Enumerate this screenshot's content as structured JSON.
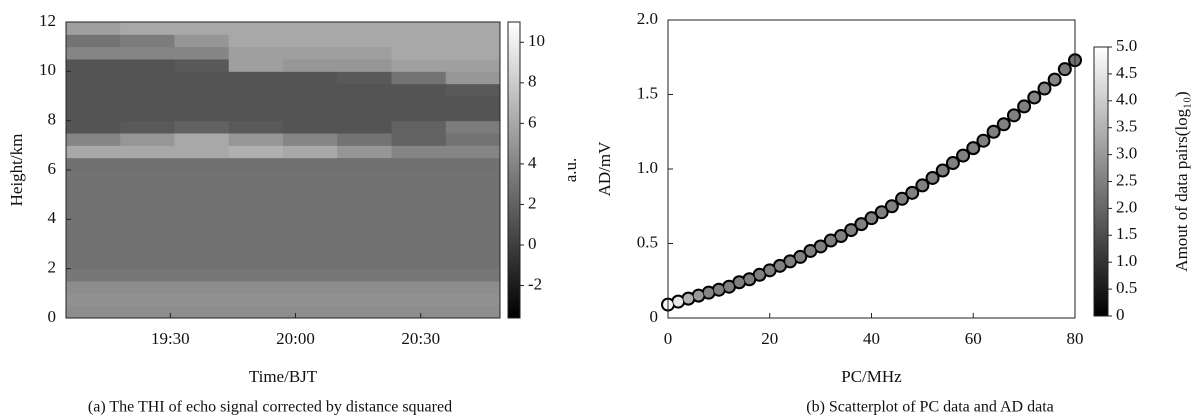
{
  "chart_data": [
    {
      "type": "heatmap",
      "colormap": "gray",
      "caption": "(a) The THI of echo signal corrected by distance squared",
      "xlabel": "Time/BJT",
      "ylabel": "Height/km",
      "colorbar_label": "a.u.",
      "xlim": [
        1145,
        1249
      ],
      "xticks": [
        {
          "value": 1170,
          "label": "19:30"
        },
        {
          "value": 1200,
          "label": "20:00"
        },
        {
          "value": 1230,
          "label": "20:30"
        }
      ],
      "ylim": [
        0,
        12
      ],
      "yticks": [
        0,
        2,
        4,
        6,
        8,
        10,
        12
      ],
      "clim": [
        -3.6,
        11
      ],
      "cticks": [
        -2,
        0,
        2,
        4,
        6,
        8,
        10
      ],
      "x": [
        1151.5,
        1164.5,
        1177.5,
        1190.5,
        1203.5,
        1216.5,
        1229.5,
        1242.5
      ],
      "y": [
        0.25,
        0.75,
        1.25,
        1.75,
        2.25,
        2.75,
        3.25,
        3.75,
        4.25,
        4.75,
        5.25,
        5.75,
        6.25,
        6.75,
        7.25,
        7.75,
        8.25,
        8.75,
        9.25,
        9.75,
        10.25,
        10.75,
        11.25,
        11.75
      ],
      "values": [
        [
          4.5,
          4.5,
          4.5,
          4.5,
          4.5,
          4.5,
          4.5,
          4.5
        ],
        [
          4.7,
          4.7,
          4.7,
          4.7,
          4.7,
          4.7,
          4.7,
          4.7
        ],
        [
          4.5,
          4.5,
          4.5,
          4.5,
          4.5,
          4.5,
          4.5,
          4.5
        ],
        [
          3.2,
          3.2,
          3.2,
          3.2,
          3.2,
          3.2,
          3.2,
          3.2
        ],
        [
          2.9,
          2.9,
          2.9,
          2.9,
          2.9,
          2.9,
          2.9,
          2.9
        ],
        [
          2.9,
          2.9,
          2.9,
          2.9,
          2.9,
          2.9,
          2.9,
          2.9
        ],
        [
          2.9,
          2.9,
          2.9,
          2.9,
          2.9,
          2.9,
          2.9,
          2.9
        ],
        [
          2.9,
          2.9,
          2.9,
          2.9,
          2.9,
          2.9,
          2.9,
          2.9
        ],
        [
          2.9,
          2.9,
          2.9,
          2.9,
          2.9,
          2.9,
          2.9,
          2.9
        ],
        [
          2.9,
          2.9,
          2.9,
          2.9,
          2.9,
          2.9,
          2.9,
          2.9
        ],
        [
          2.9,
          2.9,
          2.9,
          2.9,
          2.9,
          2.9,
          2.9,
          2.9
        ],
        [
          2.9,
          2.9,
          2.9,
          2.9,
          2.9,
          2.9,
          2.9,
          2.9
        ],
        [
          2.8,
          2.8,
          2.8,
          2.8,
          2.8,
          2.8,
          2.8,
          2.8
        ],
        [
          6,
          6,
          6,
          6.5,
          6,
          5,
          4,
          4
        ],
        [
          4,
          5,
          6,
          5,
          4,
          3,
          2,
          3
        ],
        [
          1.2,
          1.5,
          2,
          1.5,
          1.2,
          1.2,
          2,
          3.5
        ],
        [
          1.2,
          1.2,
          1.2,
          1.2,
          1.2,
          1.2,
          1.2,
          1.2
        ],
        [
          1.2,
          1.2,
          1.2,
          1.2,
          1.2,
          1.2,
          1.2,
          1.2
        ],
        [
          1.2,
          1.2,
          1.2,
          1.2,
          1.2,
          1.2,
          1.2,
          1.5
        ],
        [
          1.2,
          1.2,
          1.2,
          1.2,
          1.2,
          1.5,
          3,
          5
        ],
        [
          1.2,
          1.2,
          1.5,
          5.5,
          5,
          5,
          5.5,
          5.5
        ],
        [
          4,
          4,
          4,
          5.5,
          5.5,
          5.5,
          6,
          6
        ],
        [
          3,
          3.5,
          5,
          6,
          6,
          6,
          6,
          6
        ],
        [
          5.5,
          6,
          6,
          6,
          6,
          6,
          6,
          6
        ]
      ]
    },
    {
      "type": "scatter",
      "colormap": "gray",
      "caption": "(b) Scatterplot of PC data and AD data",
      "xlabel": "PC/MHz",
      "ylabel": "AD/mV",
      "colorbar_label": "Amout of data pairs(log₁₀)",
      "xlim": [
        0,
        80
      ],
      "xticks": [
        0,
        20,
        40,
        60,
        80
      ],
      "ylim": [
        0,
        2
      ],
      "yticks": [
        0,
        0.5,
        {
          "value": 1,
          "label": "1.0"
        },
        1.5,
        {
          "value": 2,
          "label": "2.0"
        }
      ],
      "clim": [
        0,
        5
      ],
      "cticks": [
        0,
        0.5,
        {
          "value": 1,
          "label": "1.0"
        },
        1.5,
        {
          "value": 2,
          "label": "2.0"
        },
        2.5,
        {
          "value": 3,
          "label": "3.0"
        },
        3.5,
        {
          "value": 4,
          "label": "4.0"
        },
        4.5,
        {
          "value": 5,
          "label": "5.0"
        }
      ],
      "x": [
        0,
        2,
        4,
        6,
        8,
        10,
        12,
        14,
        16,
        18,
        20,
        22,
        24,
        26,
        28,
        30,
        32,
        34,
        36,
        38,
        40,
        42,
        44,
        46,
        48,
        50,
        52,
        54,
        56,
        58,
        60,
        62,
        64,
        66,
        68,
        70,
        72,
        74,
        76,
        78,
        80
      ],
      "y": [
        0.09,
        0.11,
        0.13,
        0.15,
        0.17,
        0.19,
        0.21,
        0.24,
        0.26,
        0.29,
        0.32,
        0.35,
        0.38,
        0.41,
        0.45,
        0.48,
        0.52,
        0.55,
        0.59,
        0.63,
        0.67,
        0.71,
        0.75,
        0.8,
        0.84,
        0.89,
        0.94,
        0.99,
        1.04,
        1.09,
        1.14,
        1.19,
        1.25,
        1.3,
        1.36,
        1.42,
        1.48,
        1.54,
        1.6,
        1.67,
        1.73
      ],
      "values": [
        4.8,
        4.5,
        3.5,
        3,
        2.6,
        2.5,
        2.5,
        2.5,
        2.5,
        2.5,
        2.5,
        2.5,
        2.5,
        2.5,
        2.5,
        2.5,
        2.5,
        2.5,
        2.5,
        2.5,
        2.5,
        2.5,
        2.5,
        2.5,
        2.5,
        2.5,
        2.5,
        2.5,
        2.5,
        2.5,
        2.5,
        2.5,
        2.5,
        2.5,
        2.5,
        2.5,
        2.6,
        2.6,
        2.6,
        2.4,
        2.2
      ]
    }
  ]
}
